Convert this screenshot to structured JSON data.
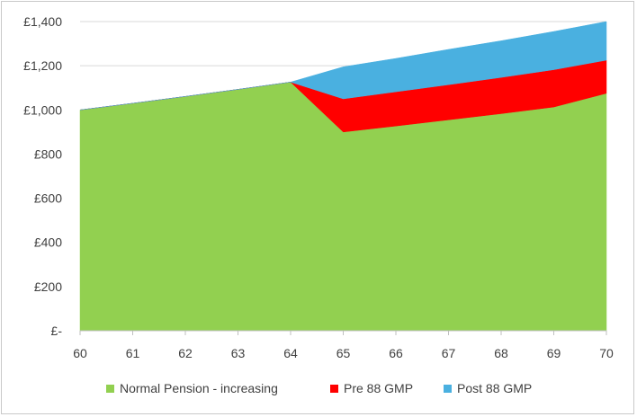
{
  "chart_data": {
    "type": "area",
    "stacked": true,
    "title": "",
    "xlabel": "",
    "ylabel": "",
    "x": [
      60,
      61,
      62,
      63,
      64,
      65,
      66,
      67,
      68,
      69,
      70
    ],
    "ylim": [
      0,
      1400
    ],
    "yticks": [
      0,
      200,
      400,
      600,
      800,
      1000,
      1200,
      1400
    ],
    "ytick_labels": [
      "£-",
      "£200",
      "£400",
      "£600",
      "£800",
      "£1,000",
      "£1,200",
      "£1,400"
    ],
    "xtick_labels": [
      "60",
      "61",
      "62",
      "63",
      "64",
      "65",
      "66",
      "67",
      "68",
      "69",
      "70"
    ],
    "grid": "horizontal",
    "legend_position": "bottom",
    "series": [
      {
        "name": "Normal Pension - increasing",
        "color": "#92D050",
        "values": [
          1000,
          1030,
          1061,
          1093,
          1126,
          900,
          927,
          955,
          983,
          1013,
          1075
        ]
      },
      {
        "name": "Pre 88 GMP",
        "color": "#FF0000",
        "values": [
          0,
          0,
          0,
          0,
          0,
          150,
          155,
          159,
          164,
          169,
          150
        ]
      },
      {
        "name": "Post 88 GMP",
        "color": "#4AB0E0",
        "values": [
          0,
          0,
          0,
          0,
          0,
          145,
          151,
          160,
          166,
          173,
          175
        ]
      }
    ]
  }
}
